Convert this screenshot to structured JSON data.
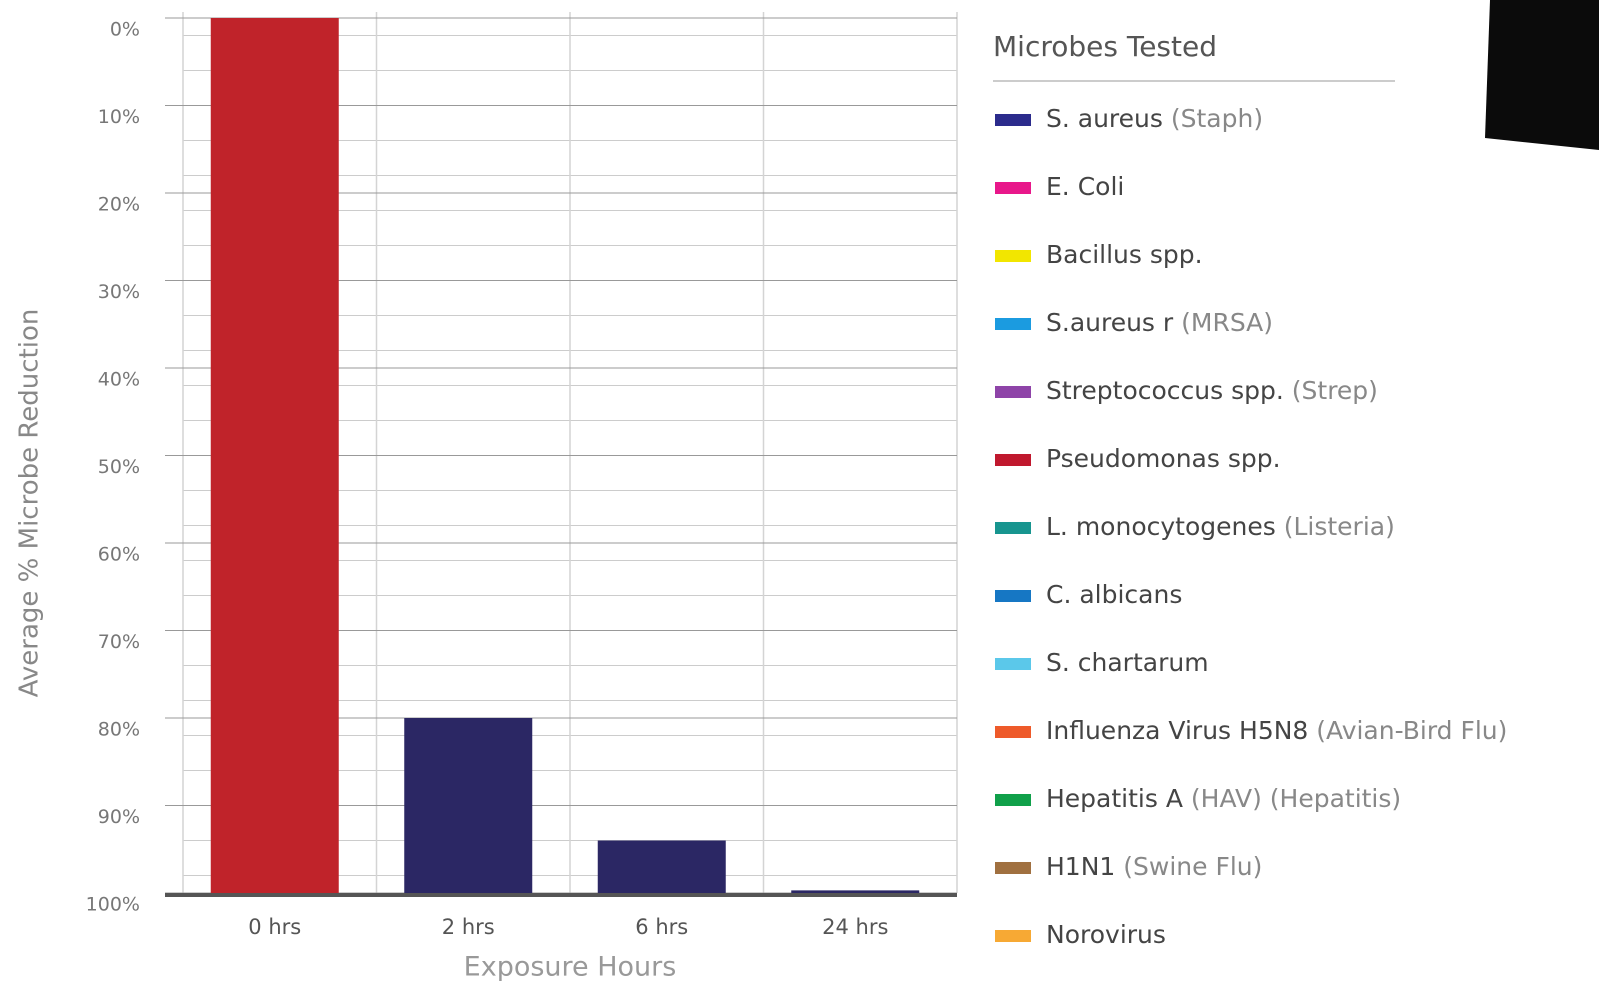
{
  "chart_data": {
    "type": "bar",
    "categories": [
      "0 hrs",
      "2 hrs",
      "6 hrs",
      "24 hrs"
    ],
    "values": [
      0,
      80,
      94,
      99.7
    ],
    "colors": [
      "#c0232a",
      "#2b2764",
      "#2b2764",
      "#2b2764"
    ],
    "ylim": [
      100,
      0
    ],
    "yticks": [
      {
        "value": 0,
        "label": "0%"
      },
      {
        "value": 10,
        "label": "10%"
      },
      {
        "value": 20,
        "label": "20%"
      },
      {
        "value": 30,
        "label": "30%"
      },
      {
        "value": 40,
        "label": "40%"
      },
      {
        "value": 50,
        "label": "50%"
      },
      {
        "value": 60,
        "label": "60%"
      },
      {
        "value": 70,
        "label": "70%"
      },
      {
        "value": 80,
        "label": "80%"
      },
      {
        "value": 90,
        "label": "90%"
      },
      {
        "value": 100,
        "label": "100%"
      }
    ],
    "ylabel": "Average % Microbe Reduction",
    "xlabel": "Exposure Hours",
    "grid": true,
    "legend_title": "Microbes Tested",
    "legend": [
      {
        "name": "S. aureus",
        "note": "(Staph)",
        "color": "#2b2b8c"
      },
      {
        "name": "E. Coli",
        "color": "#e8178a"
      },
      {
        "name": "Bacillus spp.",
        "color": "#f2e600"
      },
      {
        "name": "S.aureus r",
        "note": "(MRSA)",
        "color": "#1b9be0"
      },
      {
        "name": "Streptococcus spp.",
        "note": "(Strep)",
        "color": "#8e44a8"
      },
      {
        "name": "Pseudomonas spp.",
        "color": "#c0182e"
      },
      {
        "name": "L. monocytogenes",
        "note": "(Listeria)",
        "color": "#17958f"
      },
      {
        "name": "C. albicans",
        "color": "#1677c4"
      },
      {
        "name": "S. chartarum",
        "color": "#5bc8ea"
      },
      {
        "name": "Influenza Virus H5N8",
        "note": "(Avian-Bird Flu)",
        "color": "#ee5a2a"
      },
      {
        "name": "Hepatitis A",
        "note": "(HAV) (Hepatitis)",
        "color": "#10a04a"
      },
      {
        "name": "H1N1",
        "note": "(Swine Flu)",
        "color": "#a07040"
      },
      {
        "name": "Norovirus",
        "color": "#f7a934"
      }
    ]
  }
}
